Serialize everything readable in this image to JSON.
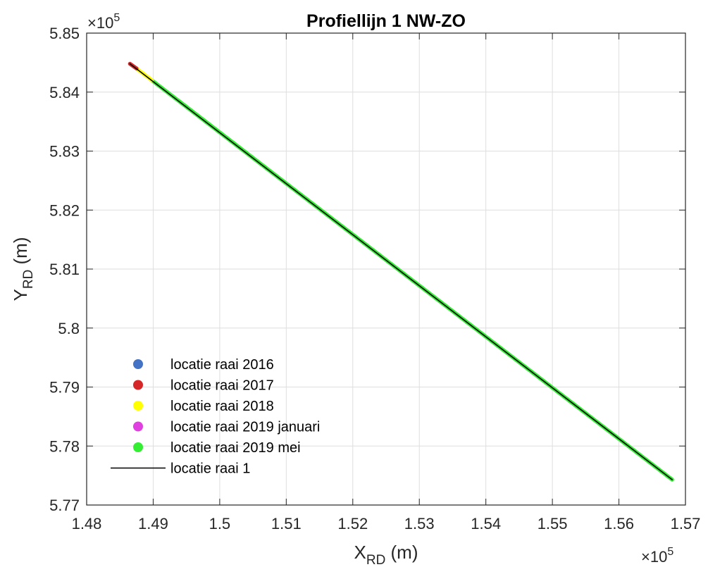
{
  "chart_data": {
    "type": "line",
    "title": "Profiellijn 1 NW-ZO",
    "xlabel": {
      "base": "X",
      "sub": "RD",
      "unit": " (m)"
    },
    "ylabel": {
      "base": "Y",
      "sub": "RD",
      "unit": " (m)"
    },
    "x_multiplier_label": "×10",
    "x_multiplier_exp": "5",
    "y_multiplier_label": "×10",
    "y_multiplier_exp": "5",
    "xlim": [
      1.48,
      1.57
    ],
    "ylim": [
      5.77,
      5.85
    ],
    "x_ticks": [
      1.48,
      1.49,
      1.5,
      1.51,
      1.52,
      1.53,
      1.54,
      1.55,
      1.56,
      1.57
    ],
    "x_tick_labels": [
      "1.48",
      "1.49",
      "1.5",
      "1.51",
      "1.52",
      "1.53",
      "1.54",
      "1.55",
      "1.56",
      "1.57"
    ],
    "y_ticks": [
      5.77,
      5.78,
      5.79,
      5.8,
      5.81,
      5.82,
      5.83,
      5.84,
      5.85
    ],
    "y_tick_labels": [
      "5.77",
      "5.78",
      "5.79",
      "5.8",
      "5.81",
      "5.82",
      "5.83",
      "5.84",
      "5.85"
    ],
    "grid": true,
    "legend_position": "lower-left",
    "series": [
      {
        "name": "locatie raai 2016",
        "marker": "dot",
        "color": "#4472c4",
        "x": [],
        "y": []
      },
      {
        "name": "locatie raai 2017",
        "marker": "dot",
        "color": "#d62728",
        "x": [
          1.4865,
          1.4875
        ],
        "y": [
          5.8448,
          5.844
        ]
      },
      {
        "name": "locatie raai 2018",
        "marker": "dot",
        "color": "#ffff00",
        "x": [
          1.4875,
          1.4898
        ],
        "y": [
          5.844,
          5.842
        ]
      },
      {
        "name": "locatie raai 2019 januari",
        "marker": "dot",
        "color": "#e040e0",
        "x": [],
        "y": []
      },
      {
        "name": "locatie raai 2019 mei",
        "marker": "dot",
        "color": "#33ee33",
        "x": [
          1.4898,
          1.568
        ],
        "y": [
          5.842,
          5.7743
        ]
      },
      {
        "name": "locatie raai 1",
        "marker": "line",
        "color": "#000000",
        "x": [
          1.4865,
          1.568
        ],
        "y": [
          5.8448,
          5.7743
        ]
      }
    ]
  }
}
